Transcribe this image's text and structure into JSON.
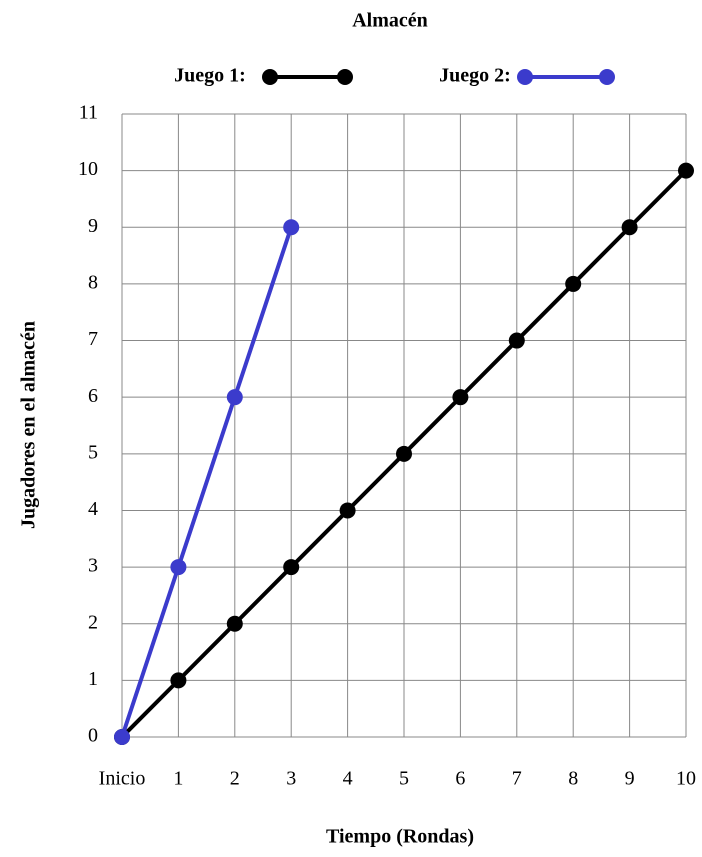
{
  "chart_data": {
    "type": "line",
    "title": "Almacén",
    "x_label": "Tiempo (Rondas)",
    "y_label": "Jugadores en el almacén",
    "categories": [
      "Inicio",
      "1",
      "2",
      "3",
      "4",
      "5",
      "6",
      "7",
      "8",
      "9",
      "10"
    ],
    "series": [
      {
        "name": "Juego 1:",
        "color": "#000000",
        "values": [
          0,
          1,
          2,
          3,
          4,
          5,
          6,
          7,
          8,
          9,
          10
        ]
      },
      {
        "name": "Juego 2:",
        "color": "#3b3bcc",
        "values": [
          0,
          3,
          6,
          9,
          null,
          null,
          null,
          null,
          null,
          null,
          null
        ]
      }
    ],
    "ylim": [
      0,
      11
    ],
    "yticks": [
      0,
      1,
      2,
      3,
      4,
      5,
      6,
      7,
      8,
      9,
      10,
      11
    ],
    "grid": true,
    "legend": "top"
  }
}
